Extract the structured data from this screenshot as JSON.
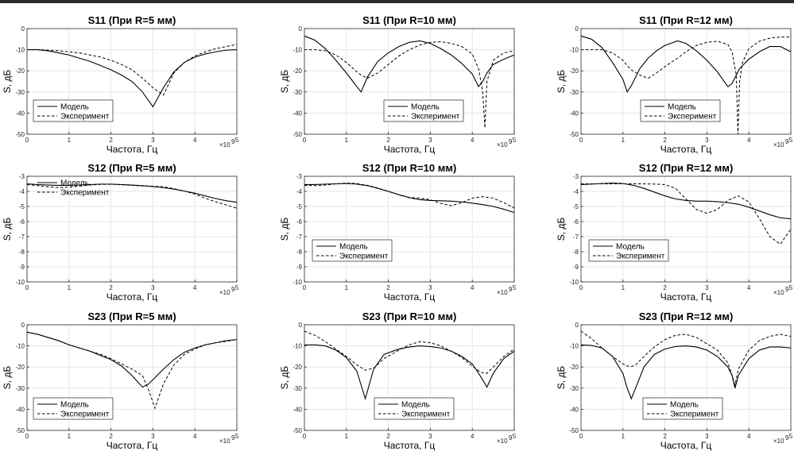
{
  "chart_data": [
    {
      "type": "line",
      "title": "S11 (При R=5 мм)",
      "xlabel": "Частота, Гц",
      "ylabel": "S, дБ",
      "xlim": [
        0,
        5
      ],
      "ylim": [
        -50,
        0
      ],
      "xticks": [
        "0",
        "1",
        "2",
        "3",
        "4",
        "5"
      ],
      "yticks": [
        "0",
        "-10",
        "-20",
        "-30",
        "-40",
        "-50"
      ],
      "x_exponent": "×10",
      "x_exponent_power": "9",
      "x": [
        0,
        0.25,
        0.5,
        0.75,
        1,
        1.25,
        1.5,
        1.75,
        2,
        2.25,
        2.5,
        2.75,
        3,
        3.25,
        3.5,
        3.75,
        4,
        4.25,
        4.5,
        4.75,
        5
      ],
      "legend": [
        "Модель",
        "Эксперимент"
      ],
      "series": [
        {
          "name": "Модель",
          "style": "solid",
          "values": [
            -10,
            -10,
            -10.5,
            -11.5,
            -12.5,
            -14,
            -15.5,
            -17.5,
            -19.5,
            -22,
            -25,
            -30,
            -37,
            -28,
            -20.5,
            -16,
            -13.5,
            -12,
            -11,
            -10.2,
            -10
          ]
        },
        {
          "name": "Эксперимент",
          "style": "dashed",
          "values": [
            -10,
            -10,
            -10.2,
            -10.5,
            -11,
            -11.5,
            -12.5,
            -13.5,
            -15,
            -17,
            -19.5,
            -23.5,
            -28,
            -31.5,
            -21,
            -16,
            -13,
            -11,
            -9.5,
            -8.5,
            -7.5
          ]
        }
      ]
    },
    {
      "type": "line",
      "title": "S11 (При R=10 мм)",
      "xlabel": "Частота, Гц",
      "ylabel": "S, дБ",
      "xlim": [
        0,
        5
      ],
      "ylim": [
        -50,
        0
      ],
      "xticks": [
        "0",
        "1",
        "2",
        "3",
        "4",
        "5"
      ],
      "yticks": [
        "0",
        "-10",
        "-20",
        "-30",
        "-40",
        "-50"
      ],
      "x_exponent": "×10",
      "x_exponent_power": "9",
      "x": [
        0,
        0.25,
        0.5,
        0.75,
        1,
        1.25,
        1.35,
        1.5,
        1.75,
        2,
        2.25,
        2.5,
        2.75,
        3,
        3.25,
        3.5,
        3.75,
        4,
        4.15,
        4.25,
        4.3,
        4.35,
        4.5,
        4.75,
        5
      ],
      "legend": [
        "Модель",
        "Эксперимент"
      ],
      "series": [
        {
          "name": "Модель",
          "style": "solid",
          "values": [
            -3.5,
            -5.5,
            -9.5,
            -15,
            -21,
            -27.5,
            -30,
            -23,
            -15.5,
            -11.5,
            -8.5,
            -6.5,
            -5.8,
            -7,
            -9.5,
            -12.5,
            -16.5,
            -21.5,
            -27.5,
            -25,
            -23,
            -21,
            -17,
            -14.5,
            -12.5
          ]
        },
        {
          "name": "Эксперимент",
          "style": "dashed",
          "values": [
            -10,
            -10,
            -10.5,
            -12.5,
            -16,
            -20.5,
            -22,
            -23.5,
            -21,
            -17,
            -13,
            -10,
            -7.8,
            -6.5,
            -6.2,
            -7,
            -8.5,
            -12,
            -19,
            -30,
            -47,
            -25,
            -15,
            -11.5,
            -10.5
          ]
        }
      ]
    },
    {
      "type": "line",
      "title": "S11 (При R=12 мм)",
      "xlabel": "Частота, Гц",
      "ylabel": "S, дБ",
      "xlim": [
        0,
        5
      ],
      "ylim": [
        -50,
        0
      ],
      "xticks": [
        "0",
        "1",
        "2",
        "3",
        "4",
        "5"
      ],
      "yticks": [
        "0",
        "-10",
        "-20",
        "-30",
        "-40",
        "-50"
      ],
      "x_exponent": "×10",
      "x_exponent_power": "9",
      "x": [
        0,
        0.25,
        0.5,
        0.75,
        1,
        1.1,
        1.2,
        1.4,
        1.6,
        1.8,
        2,
        2.3,
        2.5,
        2.75,
        3,
        3.25,
        3.5,
        3.6,
        3.7,
        3.74,
        3.78,
        3.85,
        4,
        4.25,
        4.5,
        4.75,
        5
      ],
      "legend": [
        "Модель",
        "Эксперимент"
      ],
      "series": [
        {
          "name": "Модель",
          "style": "solid",
          "values": [
            -3.5,
            -5,
            -9,
            -16,
            -24,
            -30,
            -27,
            -19,
            -14,
            -10.5,
            -8,
            -5.8,
            -7,
            -10.5,
            -15,
            -20.5,
            -27.5,
            -26,
            -22,
            -20.5,
            -19,
            -17.5,
            -14.5,
            -11,
            -8.5,
            -8.5,
            -11
          ]
        },
        {
          "name": "Эксперимент",
          "style": "dashed",
          "values": [
            -10,
            -10,
            -10,
            -11.5,
            -15,
            -17.5,
            -19.5,
            -22,
            -23.5,
            -21,
            -18,
            -14,
            -11,
            -8,
            -6.5,
            -6,
            -7.5,
            -11,
            -22,
            -50,
            -25,
            -16,
            -9.5,
            -6,
            -4.5,
            -4,
            -4
          ]
        }
      ]
    },
    {
      "type": "line",
      "title": "S12 (При R=5 мм)",
      "xlabel": "Частота, Гц",
      "ylabel": "S, дБ",
      "xlim": [
        0,
        5
      ],
      "ylim": [
        -10,
        -3
      ],
      "xticks": [
        "0",
        "1",
        "2",
        "3",
        "4",
        "5"
      ],
      "yticks": [
        "-3",
        "-4",
        "-5",
        "-6",
        "-7",
        "-8",
        "-9",
        "-10"
      ],
      "x_exponent": "×10",
      "x_exponent_power": "9",
      "x": [
        0,
        0.25,
        0.5,
        0.75,
        1,
        1.25,
        1.5,
        1.75,
        2,
        2.25,
        2.5,
        2.75,
        3,
        3.25,
        3.5,
        3.75,
        4,
        4.25,
        4.5,
        4.75,
        5
      ],
      "legend": [
        "Модель",
        "Эксперимент"
      ],
      "series": [
        {
          "name": "Модель",
          "style": "solid",
          "values": [
            -3.5,
            -3.55,
            -3.58,
            -3.6,
            -3.6,
            -3.58,
            -3.55,
            -3.52,
            -3.52,
            -3.55,
            -3.58,
            -3.62,
            -3.68,
            -3.75,
            -3.85,
            -3.98,
            -4.12,
            -4.3,
            -4.48,
            -4.62,
            -4.72
          ]
        },
        {
          "name": "Эксперимент",
          "style": "dashed",
          "values": [
            -3.55,
            -3.62,
            -3.7,
            -3.75,
            -3.72,
            -3.65,
            -3.58,
            -3.54,
            -3.53,
            -3.56,
            -3.6,
            -3.64,
            -3.66,
            -3.7,
            -3.82,
            -3.98,
            -4.18,
            -4.45,
            -4.7,
            -4.9,
            -5.12
          ]
        }
      ]
    },
    {
      "type": "line",
      "title": "S12 (При R=10 мм)",
      "xlabel": "Частота, Гц",
      "ylabel": "S, дБ",
      "xlim": [
        0,
        5
      ],
      "ylim": [
        -10,
        -3
      ],
      "xticks": [
        "0",
        "1",
        "2",
        "3",
        "4",
        "5"
      ],
      "yticks": [
        "-3",
        "-4",
        "-5",
        "-6",
        "-7",
        "-8",
        "-9",
        "-10"
      ],
      "x_exponent": "×10",
      "x_exponent_power": "9",
      "x": [
        0,
        0.25,
        0.5,
        0.75,
        1,
        1.25,
        1.5,
        1.75,
        2,
        2.25,
        2.5,
        2.75,
        3,
        3.25,
        3.5,
        3.75,
        4,
        4.25,
        4.5,
        4.75,
        5
      ],
      "legend": [
        "Модель",
        "Эксперимент"
      ],
      "series": [
        {
          "name": "Модель",
          "style": "solid",
          "values": [
            -3.55,
            -3.55,
            -3.52,
            -3.5,
            -3.48,
            -3.52,
            -3.62,
            -3.8,
            -4.0,
            -4.22,
            -4.42,
            -4.55,
            -4.6,
            -4.62,
            -4.65,
            -4.7,
            -4.78,
            -4.88,
            -5.0,
            -5.18,
            -5.4
          ]
        },
        {
          "name": "Эксперимент",
          "style": "dashed",
          "values": [
            -3.6,
            -3.62,
            -3.58,
            -3.5,
            -3.45,
            -3.48,
            -3.6,
            -3.78,
            -4.0,
            -4.22,
            -4.4,
            -4.45,
            -4.55,
            -4.8,
            -4.95,
            -4.75,
            -4.45,
            -4.35,
            -4.45,
            -4.75,
            -5.1
          ]
        }
      ]
    },
    {
      "type": "line",
      "title": "S12 (При R=12 мм)",
      "xlabel": "Частота, Гц",
      "ylabel": "S, дБ",
      "xlim": [
        0,
        5
      ],
      "ylim": [
        -10,
        -3
      ],
      "xticks": [
        "0",
        "1",
        "2",
        "3",
        "4",
        "5"
      ],
      "yticks": [
        "-3",
        "-4",
        "-5",
        "-6",
        "-7",
        "-8",
        "-9",
        "-10"
      ],
      "x_exponent": "×10",
      "x_exponent_power": "9",
      "x": [
        0,
        0.25,
        0.5,
        0.75,
        1,
        1.25,
        1.5,
        1.75,
        2,
        2.25,
        2.5,
        2.75,
        3,
        3.25,
        3.5,
        3.75,
        4,
        4.25,
        4.5,
        4.75,
        5
      ],
      "legend": [
        "Модель",
        "Эксперимент"
      ],
      "series": [
        {
          "name": "Модель",
          "style": "solid",
          "values": [
            -3.55,
            -3.52,
            -3.48,
            -3.45,
            -3.48,
            -3.6,
            -3.8,
            -4.05,
            -4.3,
            -4.5,
            -4.6,
            -4.65,
            -4.65,
            -4.68,
            -4.75,
            -4.85,
            -5.05,
            -5.3,
            -5.55,
            -5.75,
            -5.82
          ]
        },
        {
          "name": "Эксперимент",
          "style": "dashed",
          "values": [
            -3.5,
            -3.5,
            -3.5,
            -3.5,
            -3.5,
            -3.5,
            -3.5,
            -3.52,
            -3.55,
            -3.8,
            -4.5,
            -5.2,
            -5.45,
            -5.2,
            -4.6,
            -4.3,
            -4.7,
            -5.8,
            -7.0,
            -7.5,
            -6.5
          ]
        }
      ]
    },
    {
      "type": "line",
      "title": "S23 (При R=5 мм)",
      "xlabel": "Частота, Гц",
      "ylabel": "S, дБ",
      "xlim": [
        0,
        5
      ],
      "ylim": [
        -50,
        0
      ],
      "xticks": [
        "0",
        "1",
        "2",
        "3",
        "4",
        "5"
      ],
      "yticks": [
        "0",
        "-10",
        "-20",
        "-30",
        "-40",
        "-50"
      ],
      "x_exponent": "×10",
      "x_exponent_power": "9",
      "x": [
        0,
        0.25,
        0.5,
        0.75,
        1,
        1.25,
        1.5,
        1.75,
        2,
        2.25,
        2.5,
        2.75,
        2.9,
        3.05,
        3.25,
        3.5,
        3.75,
        4,
        4.25,
        4.5,
        4.75,
        5
      ],
      "legend": [
        "Модель",
        "Эксперимент"
      ],
      "series": [
        {
          "name": "Модель",
          "style": "solid",
          "values": [
            -3.5,
            -4.5,
            -6,
            -7.5,
            -9.5,
            -11,
            -12.5,
            -14.5,
            -16.5,
            -19.5,
            -24,
            -29.5,
            -28,
            -25,
            -21,
            -16.5,
            -13,
            -11,
            -9.5,
            -8.5,
            -7.5,
            -7
          ]
        },
        {
          "name": "Эксперимент",
          "style": "dashed",
          "values": [
            -3.5,
            -4.5,
            -6,
            -7.5,
            -9.5,
            -11,
            -12.5,
            -14,
            -16,
            -18.5,
            -21,
            -24,
            -31,
            -39.5,
            -28,
            -19,
            -14,
            -11.5,
            -9.5,
            -8.5,
            -7.8,
            -7
          ]
        }
      ]
    },
    {
      "type": "line",
      "title": "S23 (При R=10 мм)",
      "xlabel": "Частота, Гц",
      "ylabel": "S, дБ",
      "xlim": [
        0,
        5
      ],
      "ylim": [
        -50,
        0
      ],
      "xticks": [
        "0",
        "1",
        "2",
        "3",
        "4",
        "5"
      ],
      "yticks": [
        "0",
        "-10",
        "-20",
        "-30",
        "-40",
        "-50"
      ],
      "x_exponent": "×10",
      "x_exponent_power": "9",
      "x": [
        0,
        0.25,
        0.5,
        0.75,
        1,
        1.25,
        1.45,
        1.65,
        1.9,
        2.25,
        2.5,
        2.75,
        3,
        3.25,
        3.5,
        3.75,
        4,
        4.2,
        4.35,
        4.5,
        4.75,
        5
      ],
      "legend": [
        "Модель",
        "Эксперимент"
      ],
      "series": [
        {
          "name": "Модель",
          "style": "solid",
          "values": [
            -9.5,
            -9.5,
            -10,
            -12,
            -15.5,
            -22,
            -35,
            -21,
            -14,
            -11.5,
            -10.5,
            -10,
            -10.3,
            -11,
            -12.5,
            -15,
            -18.5,
            -24.5,
            -29.5,
            -23,
            -16,
            -12.5
          ]
        },
        {
          "name": "Эксперимент",
          "style": "dashed",
          "values": [
            -3,
            -5,
            -8,
            -11.5,
            -15,
            -19,
            -21.5,
            -20.5,
            -16,
            -12,
            -9.5,
            -8,
            -8.5,
            -10,
            -12.5,
            -15.5,
            -19.5,
            -22.5,
            -23,
            -20,
            -15,
            -11.5
          ]
        }
      ]
    },
    {
      "type": "line",
      "title": "S23 (При R=12 мм)",
      "xlabel": "Частота, Гц",
      "ylabel": "S, дБ",
      "xlim": [
        0,
        5
      ],
      "ylim": [
        -50,
        0
      ],
      "xticks": [
        "0",
        "1",
        "2",
        "3",
        "4",
        "5"
      ],
      "yticks": [
        "0",
        "-10",
        "-20",
        "-30",
        "-40",
        "-50"
      ],
      "x_exponent": "×10",
      "x_exponent_power": "9",
      "x": [
        0,
        0.25,
        0.5,
        0.75,
        1,
        1.1,
        1.2,
        1.3,
        1.5,
        1.75,
        2,
        2.25,
        2.5,
        2.75,
        3,
        3.25,
        3.5,
        3.6,
        3.67,
        3.75,
        4,
        4.25,
        4.5,
        4.75,
        5
      ],
      "legend": [
        "Модель",
        "Эксперимент"
      ],
      "series": [
        {
          "name": "Модель",
          "style": "solid",
          "values": [
            -9.5,
            -9.8,
            -11,
            -15,
            -23,
            -30,
            -35,
            -30,
            -20,
            -14,
            -11.5,
            -10.3,
            -10,
            -10.5,
            -12,
            -15,
            -20,
            -24,
            -30,
            -24,
            -16,
            -12,
            -10.5,
            -10.5,
            -11
          ]
        },
        {
          "name": "Эксперимент",
          "style": "dashed",
          "values": [
            -3,
            -6.5,
            -11,
            -15,
            -18.5,
            -19.5,
            -19.8,
            -19,
            -15,
            -10.5,
            -7,
            -5,
            -4.5,
            -6,
            -9,
            -12,
            -18,
            -24,
            -28.5,
            -21,
            -12,
            -7.5,
            -5.5,
            -4.5,
            -5.5
          ]
        }
      ]
    }
  ]
}
